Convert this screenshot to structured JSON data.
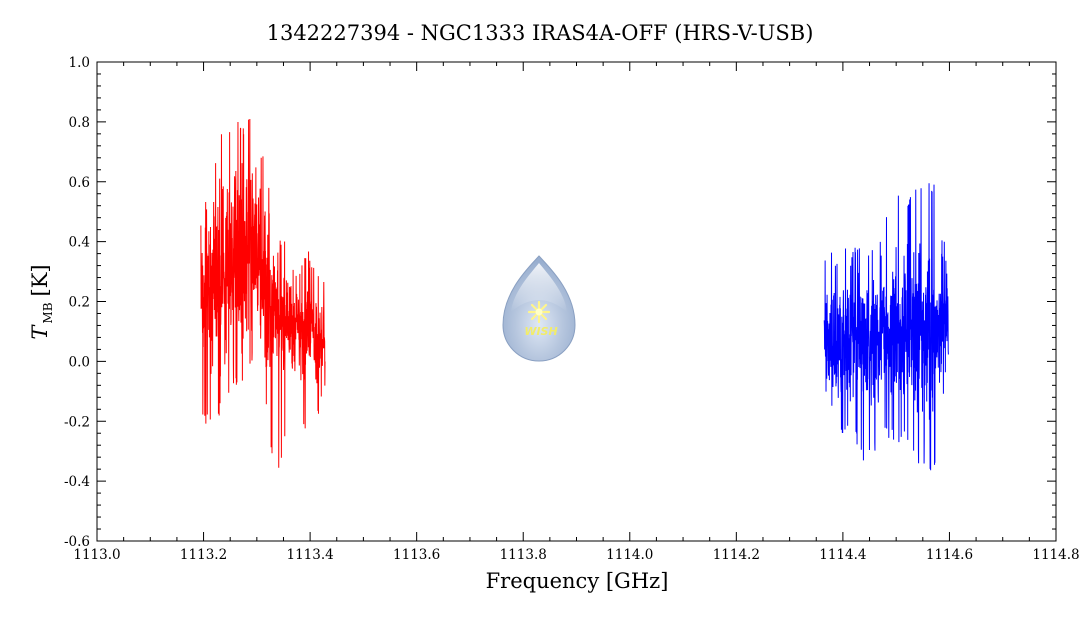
{
  "chart_data": {
    "type": "line",
    "title": "1342227394 - NGC1333 IRAS4A-OFF (HRS-V-USB)",
    "xlabel": "Frequency [GHz]",
    "ylabel_main": "T",
    "ylabel_sub": "MB",
    "ylabel_unit": "[K]",
    "xlim": [
      1113.0,
      1114.8
    ],
    "ylim": [
      -0.6,
      1.0
    ],
    "x_ticks": [
      "1113.0",
      "1113.2",
      "1113.4",
      "1113.6",
      "1113.8",
      "1114.0",
      "1114.2",
      "1114.4",
      "1114.6",
      "1114.8"
    ],
    "x_tick_values": [
      1113.0,
      1113.2,
      1113.4,
      1113.6,
      1113.8,
      1114.0,
      1114.2,
      1114.4,
      1114.6,
      1114.8
    ],
    "y_ticks": [
      "-0.6",
      "-0.4",
      "-0.2",
      "0.0",
      "0.2",
      "0.4",
      "0.6",
      "0.8",
      "1.0"
    ],
    "y_tick_values": [
      -0.6,
      -0.4,
      -0.2,
      0.0,
      0.2,
      0.4,
      0.6,
      0.8,
      1.0
    ],
    "grid": false,
    "series": [
      {
        "color": "#ff0000",
        "x": [
          1113.195,
          1113.215,
          1113.235,
          1113.255,
          1113.275,
          1113.295,
          1113.315,
          1113.335,
          1113.355,
          1113.375,
          1113.395,
          1113.415,
          1113.428
        ],
        "y": [
          0.18,
          0.24,
          0.3,
          0.32,
          0.36,
          0.4,
          0.24,
          0.14,
          0.12,
          0.12,
          0.1,
          0.08,
          0.06
        ],
        "y_min": [
          -0.18,
          -0.24,
          -0.16,
          -0.1,
          -0.08,
          0.0,
          -0.14,
          -0.44,
          -0.24,
          -0.22,
          -0.28,
          -0.2,
          -0.08
        ],
        "y_max": [
          0.5,
          0.6,
          0.78,
          0.82,
          0.8,
          0.86,
          0.66,
          0.46,
          0.4,
          0.3,
          0.4,
          0.3,
          0.26
        ]
      },
      {
        "color": "#0000ff",
        "x": [
          1114.365,
          1114.385,
          1114.405,
          1114.425,
          1114.445,
          1114.465,
          1114.485,
          1114.505,
          1114.525,
          1114.545,
          1114.565,
          1114.585,
          1114.598
        ],
        "y": [
          0.08,
          0.06,
          0.08,
          0.08,
          0.06,
          0.08,
          0.1,
          0.08,
          0.1,
          0.12,
          0.08,
          0.1,
          0.1
        ],
        "y_min": [
          -0.24,
          -0.2,
          -0.26,
          -0.28,
          -0.36,
          -0.28,
          -0.26,
          -0.3,
          -0.26,
          -0.36,
          -0.38,
          -0.32,
          -0.36
        ],
        "y_max": [
          0.46,
          0.36,
          0.4,
          0.38,
          0.44,
          0.4,
          0.54,
          0.6,
          0.56,
          0.6,
          0.6,
          0.6,
          0.66
        ]
      }
    ]
  },
  "logo": {
    "text": "WISH"
  }
}
